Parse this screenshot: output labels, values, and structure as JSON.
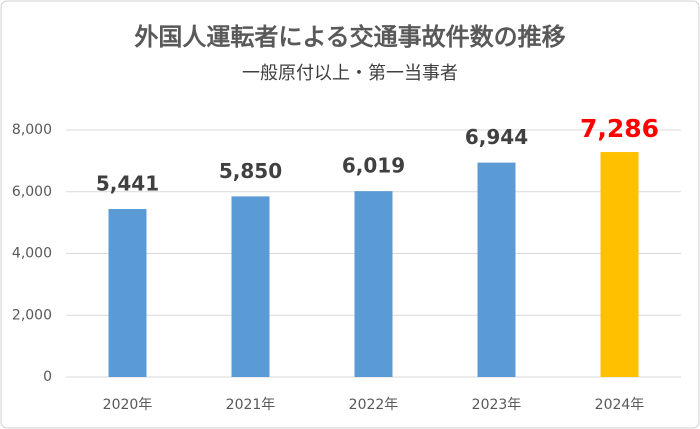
{
  "chart_data": {
    "type": "bar",
    "title": "外国人運転者による交通事故件数の推移",
    "subtitle": "一般原付以上・第一当事者",
    "categories": [
      "2020年",
      "2021年",
      "2022年",
      "2023年",
      "2024年"
    ],
    "values": [
      5441,
      5850,
      6019,
      6944,
      7286
    ],
    "value_labels": [
      "5,441",
      "5,850",
      "6,019",
      "6,944",
      "7,286"
    ],
    "colors": [
      "#5b9bd5",
      "#5b9bd5",
      "#5b9bd5",
      "#5b9bd5",
      "#ffc000"
    ],
    "label_colors": [
      "#404040",
      "#404040",
      "#404040",
      "#404040",
      "#ff0000"
    ],
    "ylim": [
      0,
      8000
    ],
    "yticks": [
      0,
      {
        "value": 2000,
        "label": "2,000"
      },
      {
        "value": 4000,
        "label": "4,000"
      },
      {
        "value": 6000,
        "label": "6,000"
      },
      {
        "value": 8000,
        "label": "8,000"
      }
    ],
    "grid": true
  }
}
